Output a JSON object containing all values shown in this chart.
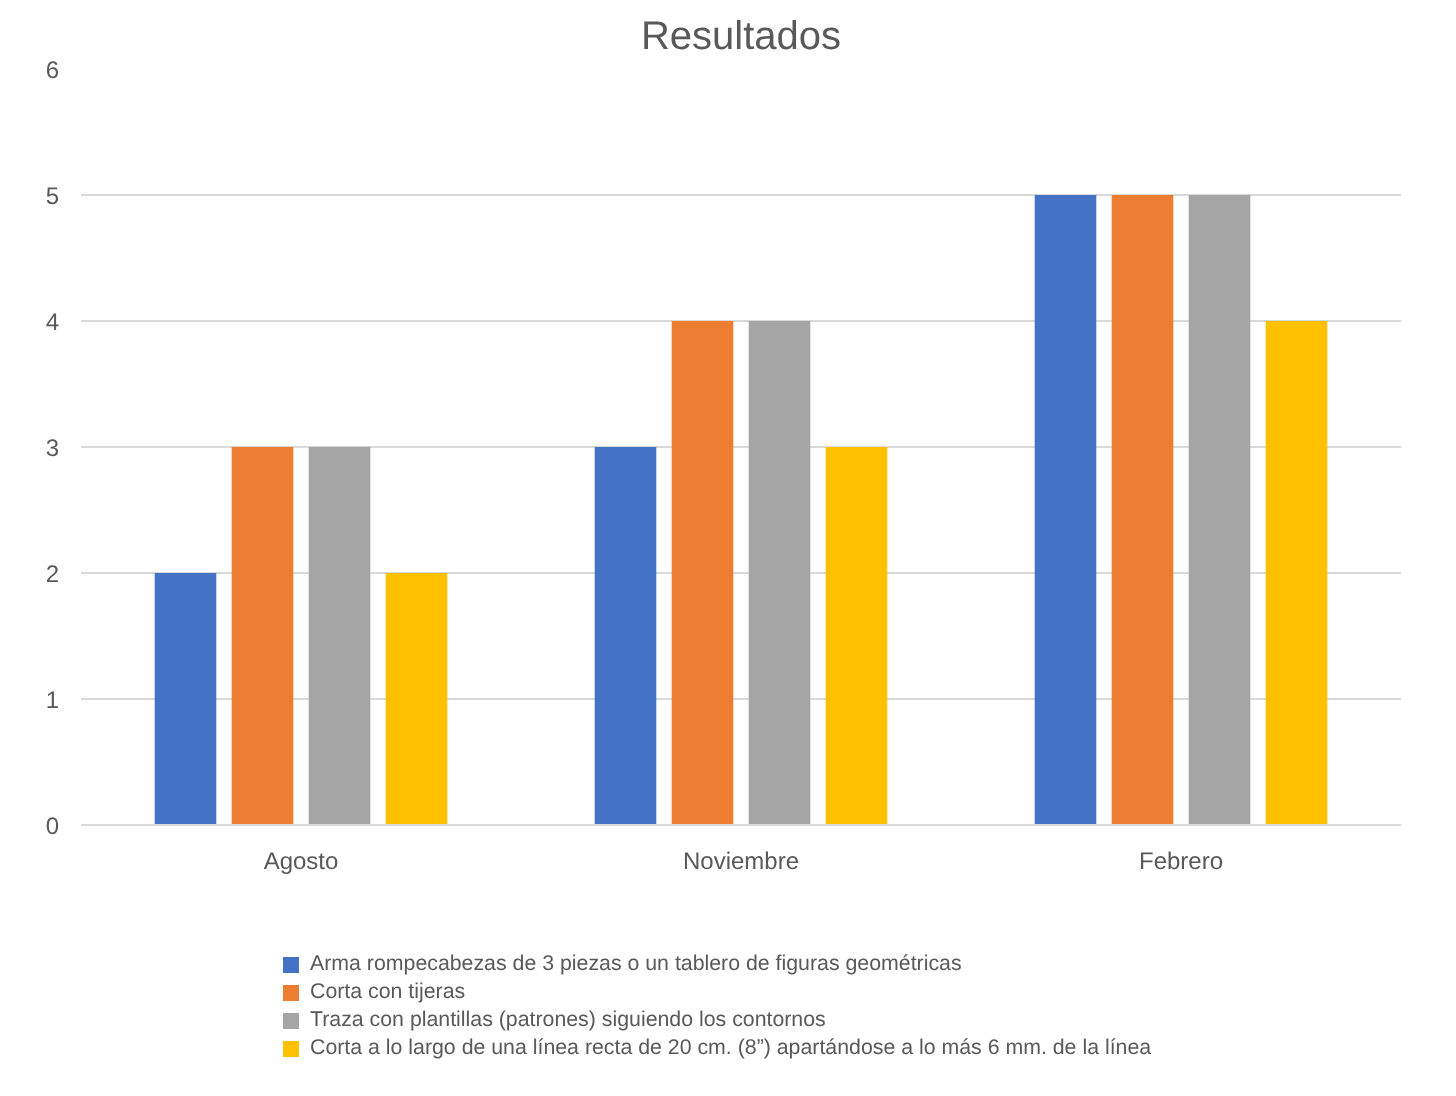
{
  "chart_data": {
    "type": "bar",
    "title": "Resultados",
    "categories": [
      "Agosto",
      "Noviembre",
      "Febrero"
    ],
    "series": [
      {
        "name": "Arma rompecabezas de 3 piezas o un tablero de figuras geométricas",
        "color": "#4472c4",
        "values": [
          2,
          3,
          5
        ]
      },
      {
        "name": "Corta con tijeras",
        "color": "#ed7d31",
        "values": [
          3,
          4,
          5
        ]
      },
      {
        "name": "Traza con plantillas (patrones) siguiendo los contornos",
        "color": "#a5a5a5",
        "values": [
          3,
          4,
          5
        ]
      },
      {
        "name": "Corta a lo largo de una línea recta de 20 cm. (8”) apartándose a lo más 6 mm. de la línea",
        "color": "#ffc000",
        "values": [
          2,
          3,
          4
        ]
      }
    ],
    "ylim": [
      0,
      6
    ],
    "yticks": [
      0,
      1,
      2,
      3,
      4,
      5,
      6
    ],
    "grid": "y",
    "legend": "bottom"
  }
}
